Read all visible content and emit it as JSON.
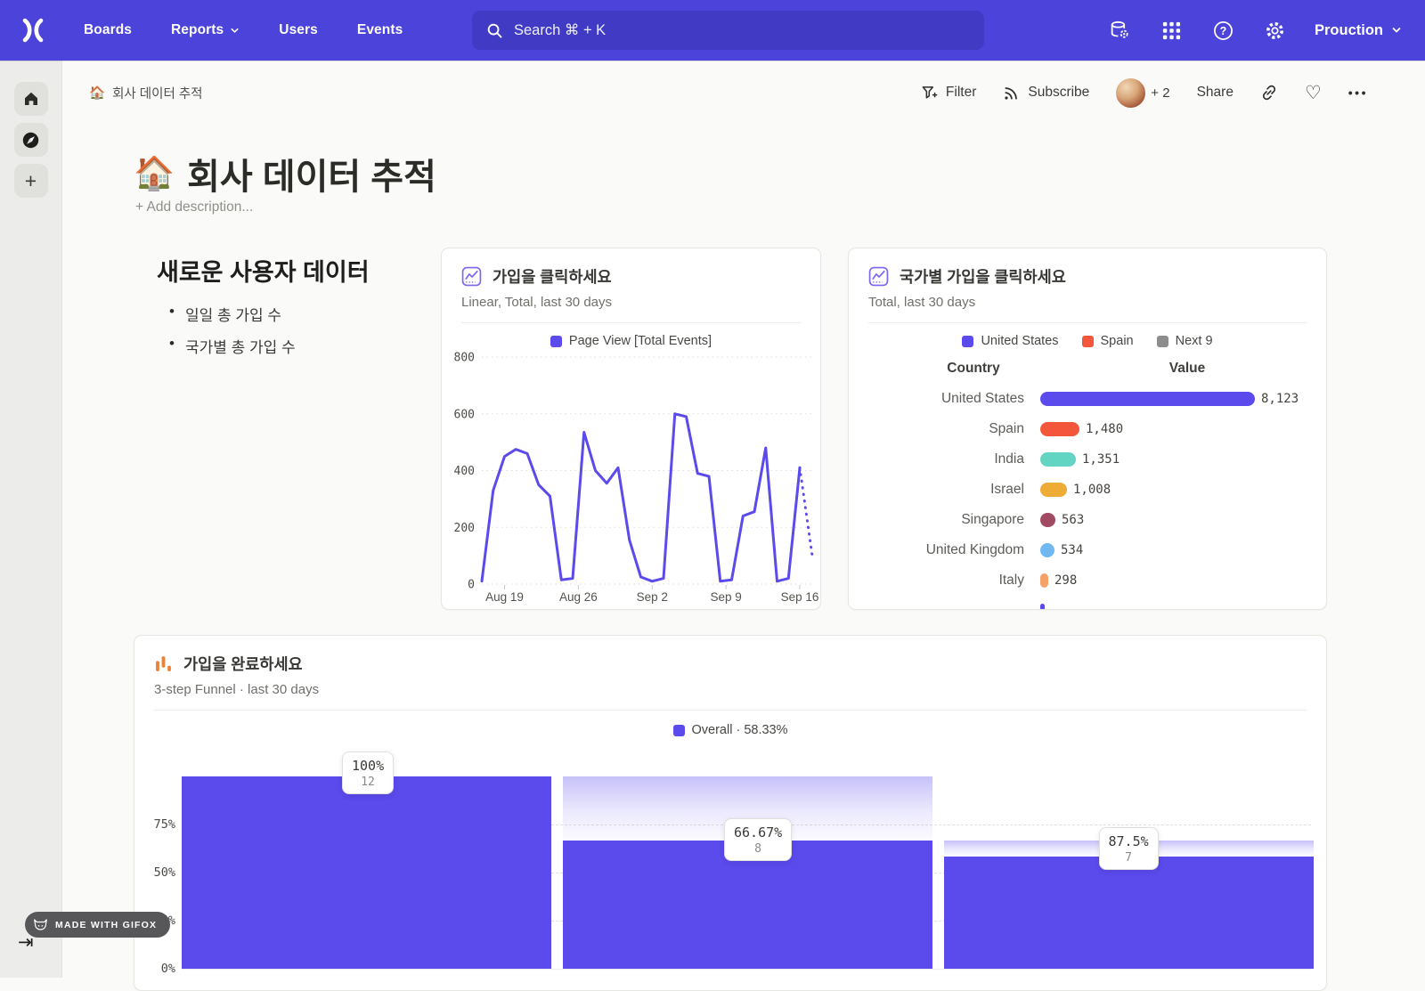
{
  "nav": {
    "items": [
      "Boards",
      "Reports",
      "Users",
      "Events"
    ],
    "search_placeholder": "Search  ⌘ + K",
    "project_label": "Prouction",
    "bg_color": "#4c44da",
    "search_bg_color": "#413ac4"
  },
  "toolbar": {
    "breadcrumb_emoji": "🏠",
    "breadcrumb": "회사 데이터 추적",
    "filter_label": "Filter",
    "subscribe_label": "Subscribe",
    "avatar_more": "+ 2",
    "share_label": "Share",
    "more_label": "•••",
    "heart": "♡"
  },
  "page": {
    "emoji": "🏠",
    "title": "회사 데이터 추적",
    "add_description": "+ Add description..."
  },
  "text_section": {
    "heading": "새로운 사용자 데이터",
    "bullets": [
      "일일 총 가입 수",
      "국가별 총 가입 수"
    ]
  },
  "chart_data": [
    {
      "id": "signup-clicks-line",
      "type": "line",
      "title": "가입을 클릭하세요",
      "subtitle": "Linear, Total, last 30 days",
      "legend": [
        {
          "label": "Page View [Total Events]",
          "color": "#5b4aec"
        }
      ],
      "ylabel": "",
      "ylim": [
        0,
        800
      ],
      "y_ticks": [
        0,
        200,
        400,
        600,
        800
      ],
      "x_tick_labels": [
        "Aug 19",
        "Aug 26",
        "Sep 2",
        "Sep 9",
        "Sep 16"
      ],
      "x_tick_indices": [
        2,
        8.5,
        15,
        21.5,
        28
      ],
      "values": [
        10,
        330,
        450,
        475,
        460,
        350,
        310,
        15,
        20,
        535,
        400,
        355,
        410,
        155,
        25,
        10,
        20,
        600,
        590,
        390,
        380,
        10,
        15,
        240,
        255,
        480,
        10,
        20,
        410
      ],
      "projection_values": [
        410,
        100
      ],
      "line_color": "#5b4aec",
      "grid": true
    },
    {
      "id": "signups-by-country",
      "type": "bar",
      "title": "국가별 가입을 클릭하세요",
      "subtitle": "Total, last 30 days",
      "legend": [
        {
          "label": "United States",
          "color": "#5b4aec"
        },
        {
          "label": "Spain",
          "color": "#f4563c"
        },
        {
          "label": "Next 9",
          "color": "#8d8d8d"
        }
      ],
      "col_headers": [
        "Country",
        "Value"
      ],
      "rows": [
        {
          "label": "United States",
          "value": 8123,
          "display": "8,123",
          "color": "#5b4aec",
          "partial": false
        },
        {
          "label": "Spain",
          "value": 1480,
          "display": "1,480",
          "color": "#f4563c",
          "partial": false
        },
        {
          "label": "India",
          "value": 1351,
          "display": "1,351",
          "color": "#62d4c2",
          "partial": false
        },
        {
          "label": "Israel",
          "value": 1008,
          "display": "1,008",
          "color": "#eeab35",
          "partial": false
        },
        {
          "label": "Singapore",
          "value": 563,
          "display": "563",
          "color": "#a34a63",
          "partial": false
        },
        {
          "label": "United Kingdom",
          "value": 534,
          "display": "534",
          "color": "#70b8f1",
          "partial": false
        },
        {
          "label": "Italy",
          "value": 298,
          "display": "298",
          "color": "#f5a269",
          "partial": false
        },
        {
          "label": "",
          "value": 140,
          "display": "",
          "color": "#5b4aec",
          "partial": true
        }
      ]
    },
    {
      "id": "signup-funnel",
      "type": "funnel",
      "title": "가입을 완료하세요",
      "subtitle": "3-step Funnel · last 30 days",
      "legend": [
        {
          "label": "Overall · 58.33%",
          "color": "#5b4aec"
        }
      ],
      "y_ticks": [
        "0%",
        "25%",
        "50%",
        "75%"
      ],
      "steps": [
        {
          "overall_pct": 100,
          "pct_label": "100%",
          "count": 12,
          "prev_overall_pct": null
        },
        {
          "overall_pct": 66.67,
          "pct_label": "66.67%",
          "count": 8,
          "prev_overall_pct": 100
        },
        {
          "overall_pct": 58.33,
          "pct_label": "87.5%",
          "count": 7,
          "prev_overall_pct": 66.67
        }
      ],
      "bar_color": "#5b4aec"
    }
  ],
  "badge": {
    "label": "MADE WITH GIFOX"
  }
}
